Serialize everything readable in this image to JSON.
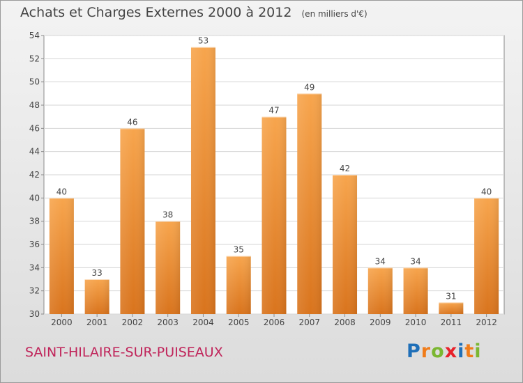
{
  "header": {
    "title": "Achats et Charges Externes 2000 à 2012",
    "subtitle": "(en milliers d'€)"
  },
  "footer": {
    "town": "SAINT-HILAIRE-SUR-PUISEAUX",
    "brand": "Proxiti",
    "brand_letters": [
      {
        "char": "P",
        "color": "#1f6fb8"
      },
      {
        "char": "r",
        "color": "#f07c1a"
      },
      {
        "char": "o",
        "color": "#7bb732"
      },
      {
        "char": "x",
        "color": "#e8212b"
      },
      {
        "char": "i",
        "color": "#1f6fb8"
      },
      {
        "char": "t",
        "color": "#f07c1a"
      },
      {
        "char": "i",
        "color": "#7bb732"
      }
    ]
  },
  "chart_data": {
    "type": "bar",
    "categories": [
      "2000",
      "2001",
      "2002",
      "2003",
      "2004",
      "2005",
      "2006",
      "2007",
      "2008",
      "2009",
      "2010",
      "2011",
      "2012"
    ],
    "values": [
      40,
      33,
      46,
      38,
      53,
      35,
      47,
      49,
      42,
      34,
      34,
      31,
      40
    ],
    "title": "Achats et Charges Externes 2000 à 2012",
    "xlabel": "",
    "ylabel": "",
    "ylim": [
      30,
      54
    ],
    "yticks": [
      30,
      32,
      34,
      36,
      38,
      40,
      42,
      44,
      46,
      48,
      50,
      52,
      54
    ],
    "grid": true,
    "bar_color": "#f0913a",
    "value_labels": true
  }
}
